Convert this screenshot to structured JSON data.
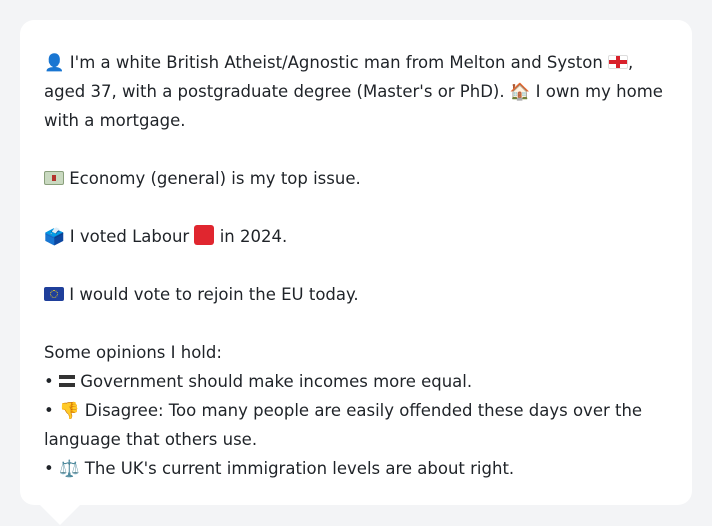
{
  "profile": {
    "intro_icon": "bust-in-silhouette-icon",
    "intro_text_1": "I'm a white British Atheist/Agnostic man from Melton and Syston ",
    "intro_flag": "england-flag-icon",
    "intro_text_2": ", aged 37, with a postgraduate degree (Master's or PhD). ",
    "home_icon": "house-icon",
    "intro_text_3": " I own my home with a mortgage.",
    "issue_icon": "banknote-icon",
    "issue_text": "Economy (general) is my top issue.",
    "vote_icon": "ballot-box-icon",
    "vote_text_1": "I voted Labour ",
    "vote_party_icon": "red-square-icon",
    "vote_text_2": " in 2024.",
    "eu_icon": "eu-flag-icon",
    "eu_text": "I would vote to rejoin the EU today.",
    "opinions_heading": "Some opinions I hold:",
    "opinions": [
      {
        "bullet": "•",
        "icon": "heavy-equals-icon",
        "text": "Government should make incomes more equal."
      },
      {
        "bullet": "•",
        "icon": "thumbs-down-icon",
        "text": "Disagree: Too many people are easily offended these days over the language that others use."
      },
      {
        "bullet": "•",
        "icon": "balance-scale-icon",
        "text": "The UK's current immigration levels are about right."
      }
    ]
  },
  "colors": {
    "background": "#f3f4f6",
    "bubble": "#ffffff",
    "text": "#1f2328"
  }
}
